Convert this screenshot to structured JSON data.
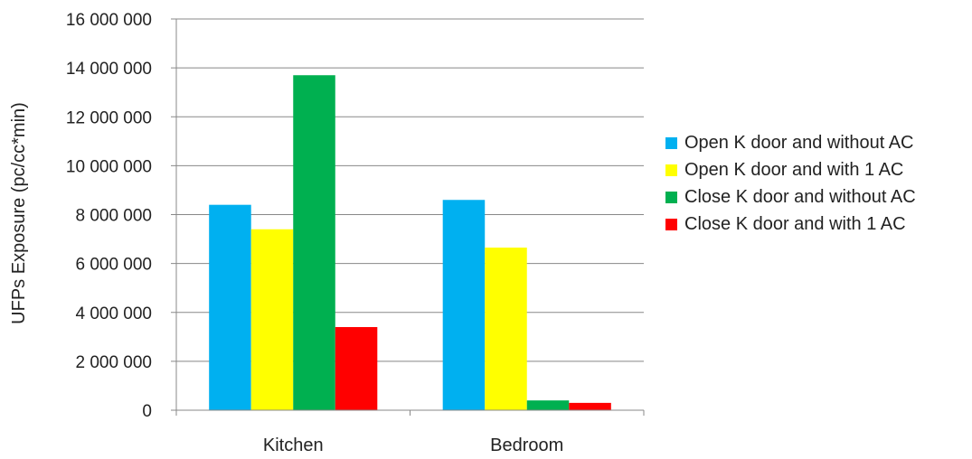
{
  "chart_data": {
    "type": "bar",
    "title": "",
    "xlabel": "",
    "ylabel": "UFPs Exposure (pc/cc*min)",
    "categories": [
      "Kitchen",
      "Bedroom"
    ],
    "ylim": [
      0,
      16000000
    ],
    "yticks": [
      0,
      2000000,
      4000000,
      6000000,
      8000000,
      10000000,
      12000000,
      14000000,
      16000000
    ],
    "ytick_labels": [
      "0",
      "2 000 000",
      "4 000 000",
      "6 000 000",
      "8 000 000",
      "10 000 000",
      "12 000 000",
      "14 000 000",
      "16 000 000"
    ],
    "grid": true,
    "legend_position": "right",
    "series": [
      {
        "name": "Open K door and without AC",
        "color": "#00b0f0",
        "values": [
          8400000,
          8600000
        ]
      },
      {
        "name": "Open K door and with 1 AC",
        "color": "#ffff00",
        "values": [
          7400000,
          6650000
        ]
      },
      {
        "name": "Close K door and without AC",
        "color": "#00b050",
        "values": [
          13700000,
          400000
        ]
      },
      {
        "name": "Close K door and with 1 AC",
        "color": "#ff0000",
        "values": [
          3400000,
          300000
        ]
      }
    ]
  }
}
